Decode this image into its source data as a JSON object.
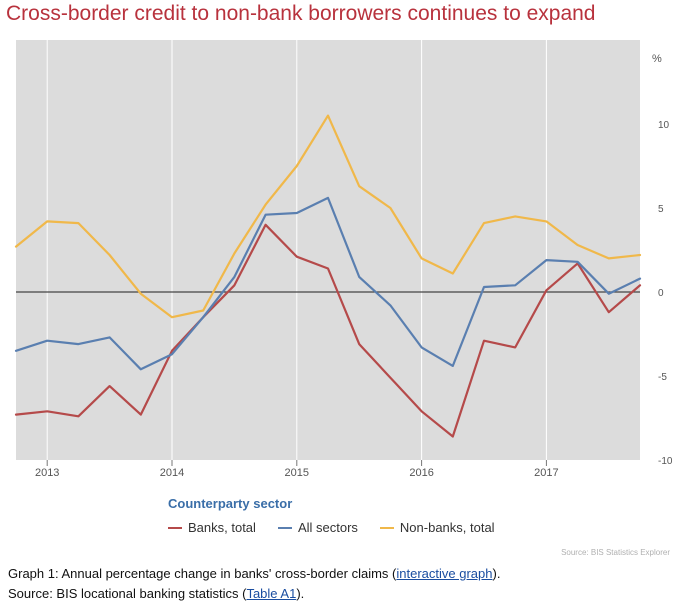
{
  "title": "Cross-border credit to non-bank borrowers continues to expand",
  "colors": {
    "plot_bg": "#dcdcdc",
    "banks": "#b54a4a",
    "all_sectors": "#5a7fb0",
    "non_banks": "#f0b84a",
    "zero_line": "#444444",
    "title": "#b8323d"
  },
  "legend_title": "Counterparty sector",
  "legend": [
    {
      "label": "Banks, total",
      "color": "#b54a4a"
    },
    {
      "label": "All sectors",
      "color": "#5a7fb0"
    },
    {
      "label": "Non-banks, total",
      "color": "#f0b84a"
    }
  ],
  "source_note": "Source: BIS Statistics Explorer",
  "caption": {
    "line1_prefix": "Graph 1: Annual percentage change in banks' cross-border claims (",
    "line1_link": "interactive graph",
    "line1_suffix": ").",
    "line2_prefix": "Source: BIS locational banking statistics (",
    "line2_link": "Table A1",
    "line2_suffix": ")."
  },
  "chart_data": {
    "type": "line",
    "title": "Cross-border credit to non-bank borrowers continues to expand",
    "yunit": "%",
    "ylim": [
      -10,
      15
    ],
    "yticks": [
      -10,
      -5,
      0,
      5,
      10
    ],
    "xlim": [
      2012.75,
      2017.75
    ],
    "xticks": [
      {
        "label": "2013",
        "x": 2013.0
      },
      {
        "label": "2014",
        "x": 2014.0
      },
      {
        "label": "2015",
        "x": 2015.0
      },
      {
        "label": "2016",
        "x": 2016.0
      },
      {
        "label": "2017",
        "x": 2017.0
      }
    ],
    "grid": true,
    "legend_position": "bottom",
    "x": [
      2012.75,
      2013.0,
      2013.25,
      2013.5,
      2013.75,
      2014.0,
      2014.25,
      2014.5,
      2014.75,
      2015.0,
      2015.25,
      2015.5,
      2015.75,
      2016.0,
      2016.25,
      2016.5,
      2016.75,
      2017.0,
      2017.25,
      2017.5,
      2017.75
    ],
    "series": [
      {
        "name": "Banks, total",
        "color": "#b54a4a",
        "values": [
          -7.3,
          -7.1,
          -7.4,
          -5.6,
          -7.3,
          -3.5,
          -1.5,
          0.4,
          4.0,
          2.1,
          1.4,
          -3.1,
          -5.1,
          -7.1,
          -8.6,
          -2.9,
          -3.3,
          0.1,
          1.7,
          -1.2,
          0.4
        ]
      },
      {
        "name": "All sectors",
        "color": "#5a7fb0",
        "values": [
          -3.5,
          -2.9,
          -3.1,
          -2.7,
          -4.6,
          -3.7,
          -1.5,
          0.9,
          4.6,
          4.7,
          5.6,
          0.9,
          -0.8,
          -3.3,
          -4.4,
          0.3,
          0.4,
          1.9,
          1.8,
          -0.1,
          0.8
        ]
      },
      {
        "name": "Non-banks, total",
        "color": "#f0b84a",
        "values": [
          2.7,
          4.2,
          4.1,
          2.2,
          -0.1,
          -1.5,
          -1.1,
          2.3,
          5.2,
          7.5,
          10.5,
          6.3,
          5.0,
          2.0,
          1.1,
          4.1,
          4.5,
          4.2,
          2.8,
          2.0,
          2.2
        ]
      }
    ]
  }
}
